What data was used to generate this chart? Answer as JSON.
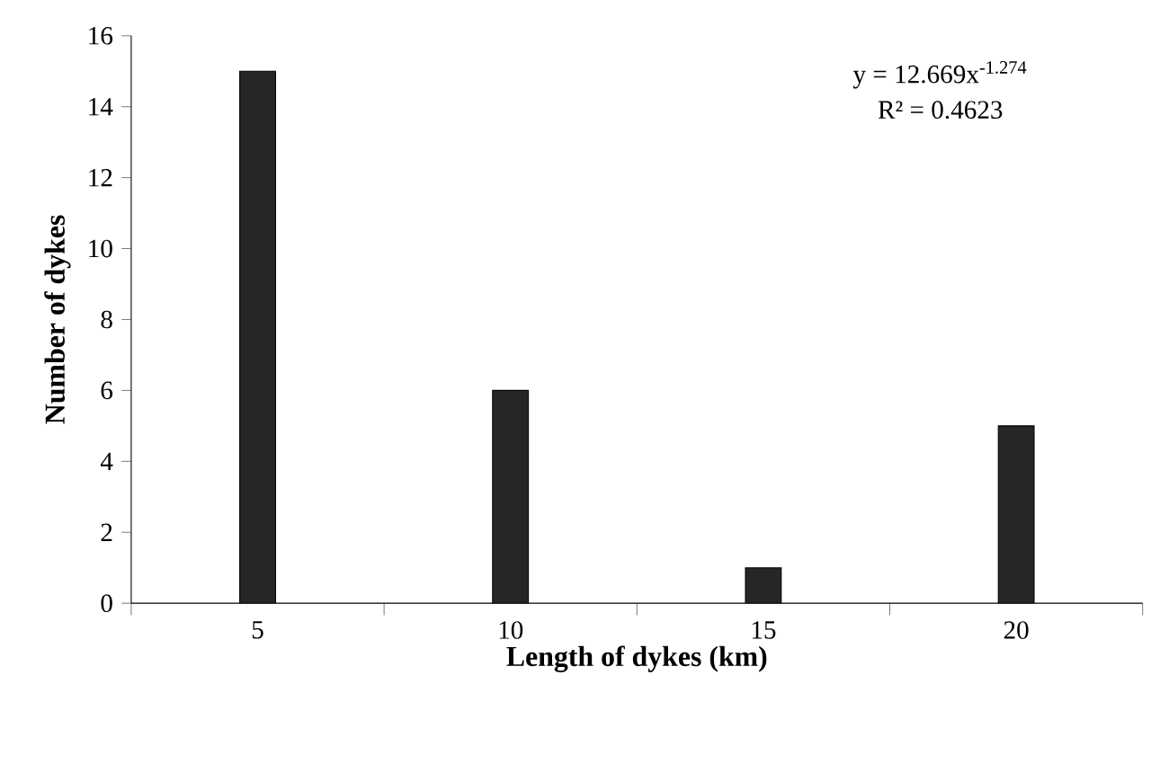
{
  "chart_data": {
    "type": "bar",
    "xlabel": "Length of dykes (km)",
    "ylabel": "Number of dykes",
    "categories": [
      "5",
      "10",
      "15",
      "20"
    ],
    "values": [
      15,
      6,
      1,
      5
    ],
    "color": "#262626",
    "ylim": [
      0,
      16
    ],
    "yticks": [
      0,
      2,
      4,
      6,
      8,
      10,
      12,
      14,
      16
    ],
    "annotations": [
      "y = 12.669x$^{-1.274}$",
      "R² = 0.4623"
    ]
  }
}
